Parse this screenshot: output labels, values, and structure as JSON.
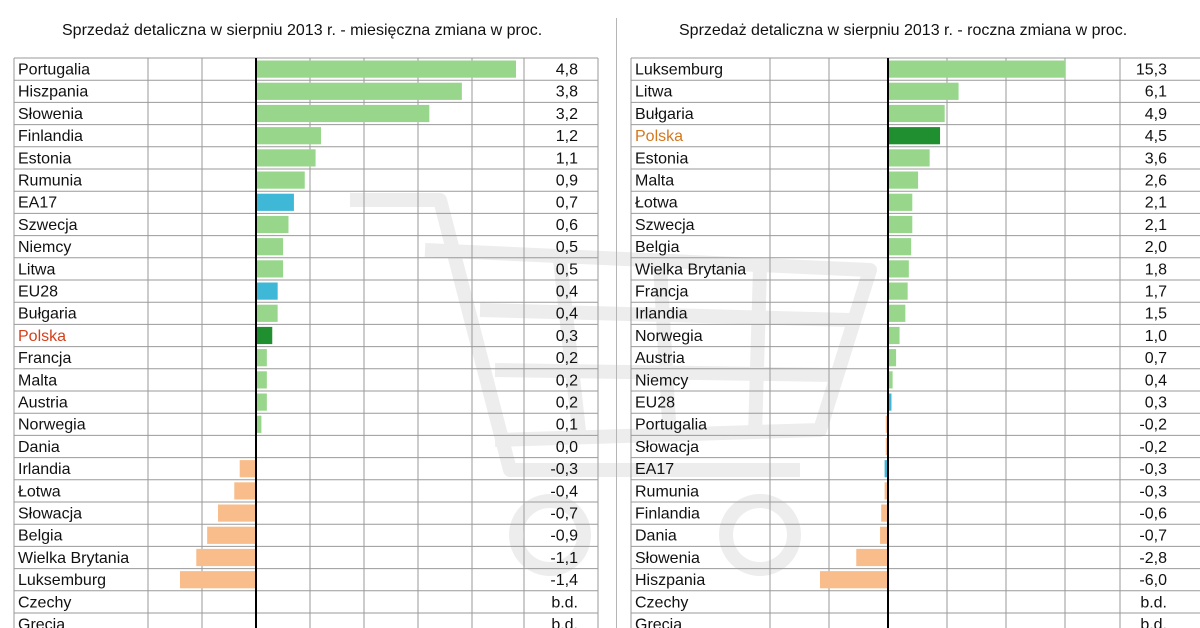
{
  "colors": {
    "positive": "#97d68b",
    "negative": "#f9bd8b",
    "aggregate": "#3fb7d6",
    "poland_bar": "#1f8f2f",
    "poland_label_left": "#d5401a",
    "poland_label_right": "#d4781e",
    "grid": "#9a9a9a",
    "axis": "#000000",
    "title_accent": "#d8261c"
  },
  "chart_data": [
    {
      "type": "bar",
      "orientation": "horizontal",
      "title": "Sprzedaż detaliczna w sierpniu 2013 r. - miesięczna zmiana w proc.",
      "xlim": [
        -1.4,
        4.8
      ],
      "grid": true,
      "legend": "none",
      "rows": [
        {
          "label": "Portugalia",
          "value": 4.8,
          "text": "4,8"
        },
        {
          "label": "Hiszpania",
          "value": 3.8,
          "text": "3,8"
        },
        {
          "label": "Słowenia",
          "value": 3.2,
          "text": "3,2"
        },
        {
          "label": "Finlandia",
          "value": 1.2,
          "text": "1,2"
        },
        {
          "label": "Estonia",
          "value": 1.1,
          "text": "1,1"
        },
        {
          "label": "Rumunia",
          "value": 0.9,
          "text": "0,9"
        },
        {
          "label": "EA17",
          "value": 0.7,
          "text": "0,7",
          "kind": "aggregate"
        },
        {
          "label": "Szwecja",
          "value": 0.6,
          "text": "0,6"
        },
        {
          "label": "Niemcy",
          "value": 0.5,
          "text": "0,5"
        },
        {
          "label": "Litwa",
          "value": 0.5,
          "text": "0,5"
        },
        {
          "label": "EU28",
          "value": 0.4,
          "text": "0,4",
          "kind": "aggregate"
        },
        {
          "label": "Bułgaria",
          "value": 0.4,
          "text": "0,4"
        },
        {
          "label": "Polska",
          "value": 0.3,
          "text": "0,3",
          "kind": "poland"
        },
        {
          "label": "Francja",
          "value": 0.2,
          "text": "0,2"
        },
        {
          "label": "Malta",
          "value": 0.2,
          "text": "0,2"
        },
        {
          "label": "Austria",
          "value": 0.2,
          "text": "0,2"
        },
        {
          "label": "Norwegia",
          "value": 0.1,
          "text": "0,1"
        },
        {
          "label": "Dania",
          "value": 0.0,
          "text": "0,0"
        },
        {
          "label": "Irlandia",
          "value": -0.3,
          "text": "-0,3"
        },
        {
          "label": "Łotwa",
          "value": -0.4,
          "text": "-0,4"
        },
        {
          "label": "Słowacja",
          "value": -0.7,
          "text": "-0,7"
        },
        {
          "label": "Belgia",
          "value": -0.9,
          "text": "-0,9"
        },
        {
          "label": "Wielka Brytania",
          "value": -1.1,
          "text": "-1,1"
        },
        {
          "label": "Luksemburg",
          "value": -1.4,
          "text": "-1,4"
        },
        {
          "label": "Czechy",
          "value": null,
          "text": "b.d."
        },
        {
          "label": "Grecja",
          "value": null,
          "text": "b.d."
        }
      ]
    },
    {
      "type": "bar",
      "orientation": "horizontal",
      "title": "Sprzedaż detaliczna w sierpniu 2013 r. - roczna zmiana w proc.",
      "xlim": [
        -6.0,
        15.3
      ],
      "grid": true,
      "legend": "none",
      "rows": [
        {
          "label": "Luksemburg",
          "value": 15.3,
          "text": "15,3"
        },
        {
          "label": "Litwa",
          "value": 6.1,
          "text": "6,1"
        },
        {
          "label": "Bułgaria",
          "value": 4.9,
          "text": "4,9"
        },
        {
          "label": "Polska",
          "value": 4.5,
          "text": "4,5",
          "kind": "poland"
        },
        {
          "label": "Estonia",
          "value": 3.6,
          "text": "3,6"
        },
        {
          "label": "Malta",
          "value": 2.6,
          "text": "2,6"
        },
        {
          "label": "Łotwa",
          "value": 2.1,
          "text": "2,1"
        },
        {
          "label": "Szwecja",
          "value": 2.1,
          "text": "2,1"
        },
        {
          "label": "Belgia",
          "value": 2.0,
          "text": "2,0"
        },
        {
          "label": "Wielka Brytania",
          "value": 1.8,
          "text": "1,8"
        },
        {
          "label": "Francja",
          "value": 1.7,
          "text": "1,7"
        },
        {
          "label": "Irlandia",
          "value": 1.5,
          "text": "1,5"
        },
        {
          "label": "Norwegia",
          "value": 1.0,
          "text": "1,0"
        },
        {
          "label": "Austria",
          "value": 0.7,
          "text": "0,7"
        },
        {
          "label": "Niemcy",
          "value": 0.4,
          "text": "0,4"
        },
        {
          "label": "EU28",
          "value": 0.3,
          "text": "0,3",
          "kind": "aggregate"
        },
        {
          "label": "Portugalia",
          "value": -0.2,
          "text": "-0,2"
        },
        {
          "label": "Słowacja",
          "value": -0.2,
          "text": "-0,2"
        },
        {
          "label": "EA17",
          "value": -0.3,
          "text": "-0,3",
          "kind": "aggregate"
        },
        {
          "label": "Rumunia",
          "value": -0.3,
          "text": "-0,3"
        },
        {
          "label": "Finlandia",
          "value": -0.6,
          "text": "-0,6"
        },
        {
          "label": "Dania",
          "value": -0.7,
          "text": "-0,7"
        },
        {
          "label": "Słowenia",
          "value": -2.8,
          "text": "-2,8"
        },
        {
          "label": "Hiszpania",
          "value": -6.0,
          "text": "-6,0"
        },
        {
          "label": "Czechy",
          "value": null,
          "text": "b.d."
        },
        {
          "label": "Grecja",
          "value": null,
          "text": "b.d."
        }
      ]
    }
  ]
}
